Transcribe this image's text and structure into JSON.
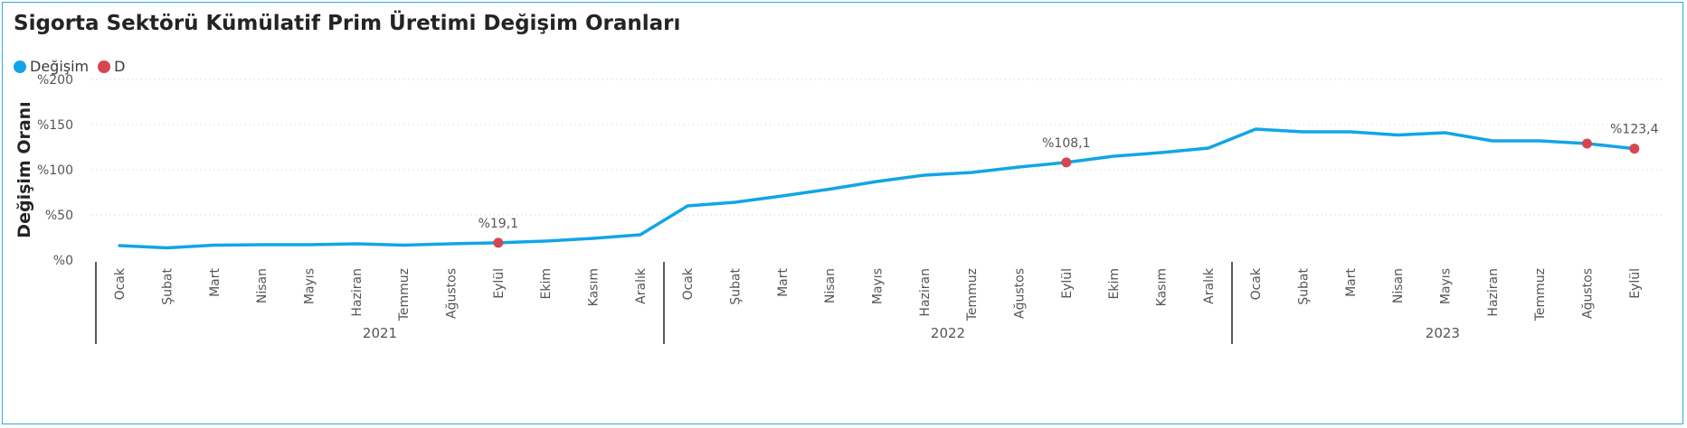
{
  "chart_data": {
    "type": "line",
    "title": "Sigorta Sektörü Kümülatif Prim Üretimi Değişim Oranları",
    "ylabel": "Değişim Oranı",
    "ylim": [
      0,
      200
    ],
    "y_ticks": [
      "%0",
      "%50",
      "%100",
      "%150",
      "%200"
    ],
    "legend": {
      "position": "top-left",
      "items": [
        {
          "name": "Değişim",
          "color": "#12a5e6"
        },
        {
          "name": "D",
          "color": "#d64550"
        }
      ]
    },
    "years": [
      {
        "label": "2021",
        "months": [
          "Ocak",
          "Şubat",
          "Mart",
          "Nisan",
          "Mayıs",
          "Haziran",
          "Temmuz",
          "Ağustos",
          "Eylül",
          "Ekim",
          "Kasım",
          "Aralık"
        ]
      },
      {
        "label": "2022",
        "months": [
          "Ocak",
          "Şubat",
          "Mart",
          "Nisan",
          "Mayıs",
          "Haziran",
          "Temmuz",
          "Ağustos",
          "Eylül",
          "Ekim",
          "Kasım",
          "Aralık"
        ]
      },
      {
        "label": "2023",
        "months": [
          "Ocak",
          "Şubat",
          "Mart",
          "Nisan",
          "Mayıs",
          "Haziran",
          "Temmuz",
          "Ağustos",
          "Eylül"
        ]
      }
    ],
    "series": [
      {
        "name": "Değişim",
        "color": "#12a5e6",
        "values": [
          16,
          13.5,
          16.5,
          17,
          17,
          18,
          16.5,
          18,
          19.1,
          21,
          24,
          28,
          60,
          64,
          71,
          78.5,
          87,
          94,
          97,
          103,
          108.1,
          115,
          119,
          124,
          145,
          142,
          142,
          138.5,
          141,
          132,
          132,
          129,
          123.4
        ]
      }
    ],
    "markers": [
      {
        "index": 8,
        "value": 19.1,
        "label": "%19,1"
      },
      {
        "index": 20,
        "value": 108.1,
        "label": "%108,1"
      },
      {
        "index": 31,
        "value": 129,
        "label": ""
      },
      {
        "index": 32,
        "value": 123.4,
        "label": "%123,4"
      }
    ],
    "marker_color": "#d64550",
    "grid": true
  }
}
